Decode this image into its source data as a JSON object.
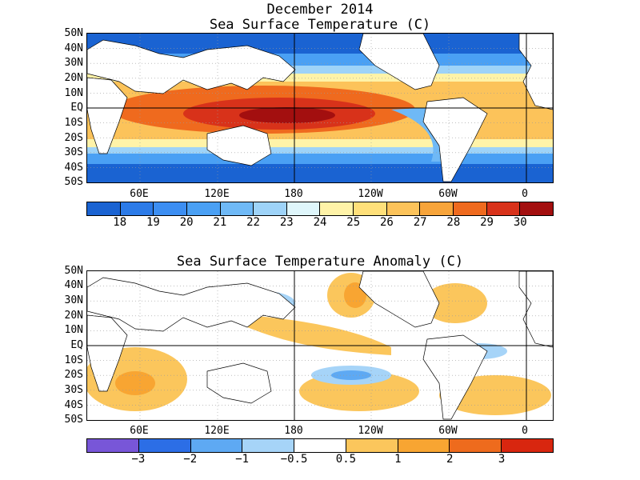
{
  "figure": {
    "title_line1": "December 2014",
    "title_line2": "Sea Surface Temperature (C)",
    "title_anom": "Sea Surface Temperature Anomaly (C)"
  },
  "axes": {
    "lat_labels": [
      "50N",
      "40N",
      "30N",
      "20N",
      "10N",
      "EQ",
      "10S",
      "20S",
      "30S",
      "40S",
      "50S"
    ],
    "lon_labels": [
      "60E",
      "120E",
      "180",
      "120W",
      "60W",
      "0"
    ]
  },
  "sst_colorbar": {
    "colors": [
      "#1a63d2",
      "#2c7be8",
      "#3c8ef2",
      "#4aa0f4",
      "#6fb9f6",
      "#9ed3f8",
      "#dff6fb",
      "#fff3a8",
      "#ffe07a",
      "#fcc35a",
      "#f7a43a",
      "#ef6a1e",
      "#d8321a",
      "#a30f0f"
    ],
    "labels": [
      "18",
      "19",
      "20",
      "21",
      "22",
      "23",
      "24",
      "25",
      "26",
      "27",
      "28",
      "29",
      "30"
    ]
  },
  "anom_colorbar": {
    "colors": [
      "#7856d8",
      "#2c6ee6",
      "#5ea9f3",
      "#a6d4f8",
      "#ffffff",
      "#fbc65c",
      "#f8a532",
      "#ee6b1d",
      "#d8260f"
    ],
    "labels": [
      "−3",
      "−2",
      "−1",
      "−0.5",
      "0.5",
      "1",
      "2",
      "3"
    ]
  },
  "legend_colors": {
    "land": "#ffffff",
    "coast": "#000000",
    "grid": "#9a9a9a"
  }
}
